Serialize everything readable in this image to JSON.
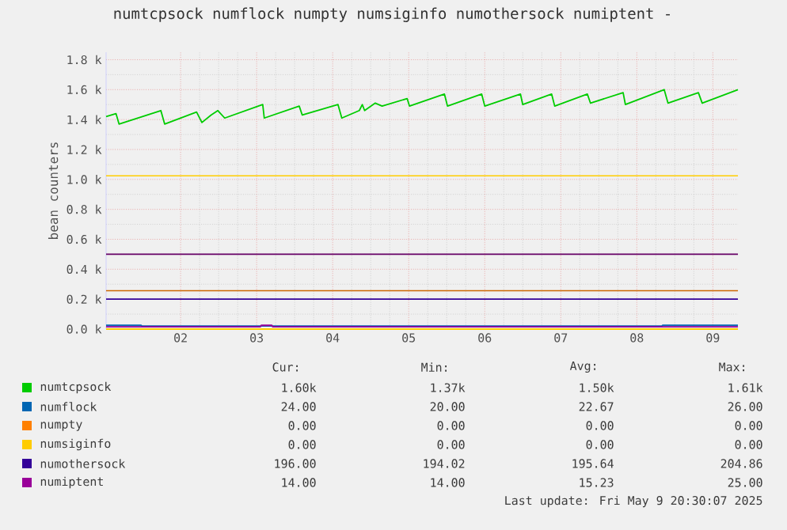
{
  "chart_data": {
    "type": "line",
    "title": "numtcpsock numflock numpty numsiginfo numothersock numiptent -",
    "ylabel": "bean counters",
    "xlim": [
      1.02,
      9.33
    ],
    "xticks": [
      {
        "value": 2,
        "label": "02"
      },
      {
        "value": 3,
        "label": "03"
      },
      {
        "value": 4,
        "label": "04"
      },
      {
        "value": 5,
        "label": "05"
      },
      {
        "value": 6,
        "label": "06"
      },
      {
        "value": 7,
        "label": "07"
      },
      {
        "value": 8,
        "label": "08"
      },
      {
        "value": 9,
        "label": "09"
      }
    ],
    "ylim": [
      0,
      1850
    ],
    "yticks": [
      {
        "value": 0,
        "label": "0.0 k"
      },
      {
        "value": 200,
        "label": "0.2 k"
      },
      {
        "value": 400,
        "label": "0.4 k"
      },
      {
        "value": 600,
        "label": "0.6 k"
      },
      {
        "value": 800,
        "label": "0.8 k"
      },
      {
        "value": 1000,
        "label": "1.0 k"
      },
      {
        "value": 1200,
        "label": "1.2 k"
      },
      {
        "value": 1400,
        "label": "1.4 k"
      },
      {
        "value": 1600,
        "label": "1.6 k"
      },
      {
        "value": 1800,
        "label": "1.8 k"
      }
    ],
    "grid": true,
    "legend": "bottom",
    "marker": "none",
    "line_style": "solid",
    "series": [
      {
        "name": "numtcpsock",
        "color": "#00cc00",
        "x": [
          1.02,
          1.15,
          1.19,
          1.74,
          1.79,
          2.21,
          2.28,
          2.4,
          2.49,
          2.58,
          3.08,
          3.1,
          3.56,
          3.6,
          4.07,
          4.12,
          4.35,
          4.39,
          4.42,
          4.56,
          4.65,
          4.98,
          5.01,
          5.47,
          5.51,
          5.96,
          6.0,
          6.47,
          6.5,
          6.88,
          6.92,
          7.35,
          7.39,
          7.82,
          7.85,
          8.36,
          8.41,
          8.81,
          8.86,
          9.33
        ],
        "values": [
          1420,
          1440,
          1370,
          1460,
          1370,
          1450,
          1380,
          1430,
          1460,
          1410,
          1500,
          1410,
          1490,
          1430,
          1500,
          1410,
          1460,
          1500,
          1460,
          1510,
          1490,
          1540,
          1490,
          1570,
          1490,
          1570,
          1490,
          1570,
          1500,
          1570,
          1490,
          1570,
          1510,
          1580,
          1500,
          1600,
          1510,
          1580,
          1510,
          1600
        ]
      },
      {
        "name": "numflock",
        "color": "#0066b3",
        "x": [
          1.02,
          1.48,
          1.49,
          8.33,
          8.34,
          8.5,
          8.51,
          9.33
        ],
        "values": [
          25,
          25,
          20,
          20,
          25,
          25,
          25,
          25
        ]
      },
      {
        "name": "numpty",
        "color": "#ff8000",
        "values": [
          null,
          null
        ]
      },
      {
        "name": "numsiginfo",
        "color": "#ffcc00",
        "x": [
          1.02,
          9.33
        ],
        "values": [
          0,
          0
        ]
      },
      {
        "name": "numothersock",
        "color": "#330099",
        "x": [
          1.02,
          9.33
        ],
        "values": [
          200,
          200
        ]
      },
      {
        "name": "numiptent",
        "color": "#990099",
        "x": [
          1.02,
          3.05,
          3.06,
          3.2,
          3.21,
          9.33
        ],
        "values": [
          15,
          15,
          25,
          25,
          15,
          15
        ]
      }
    ],
    "ref_lines": [
      {
        "axis": "y",
        "value": 1024,
        "color": "#ffcc00"
      },
      {
        "axis": "y",
        "value": 500,
        "color": "#660066"
      },
      {
        "axis": "y",
        "value": 256,
        "color": "#cc6600"
      }
    ],
    "annotations": [
      "Cur:",
      "Min:",
      "Avg:",
      "Max:",
      "1.60k",
      "1.37k",
      "1.50k",
      "1.61k",
      "24.00",
      "20.00",
      "22.67",
      "26.00",
      "0.00",
      "0.00",
      "0.00",
      "0.00",
      "0.00",
      "0.00",
      "0.00",
      "0.00",
      "196.00",
      "194.02",
      "195.64",
      "204.86",
      "14.00",
      "14.00",
      "15.23",
      "25.00",
      "Last update: Fri May  9 20:30:07 2025"
    ]
  }
}
